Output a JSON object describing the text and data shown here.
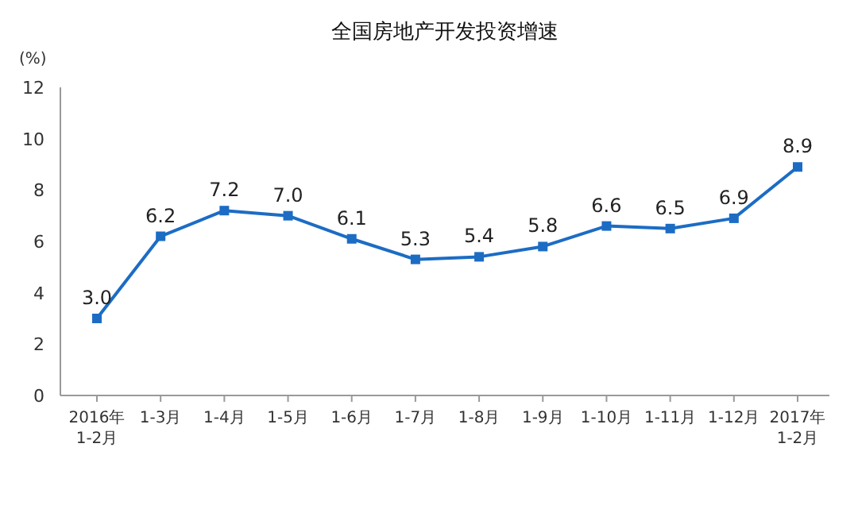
{
  "chart_data": {
    "type": "line",
    "title": "全国房地产开发投资增速",
    "ylabel": "(%)",
    "categories": [
      "2016年\n1-2月",
      "1-3月",
      "1-4月",
      "1-5月",
      "1-6月",
      "1-7月",
      "1-8月",
      "1-9月",
      "1-10月",
      "1-11月",
      "1-12月",
      "2017年\n1-2月"
    ],
    "series": [
      {
        "color": "#1c6cc4",
        "values": [
          3.0,
          6.2,
          7.2,
          7.0,
          6.1,
          5.3,
          5.4,
          5.8,
          6.6,
          6.5,
          6.9,
          8.9
        ],
        "value_labels": [
          "3.0",
          "6.2",
          "7.2",
          "7.0",
          "6.1",
          "5.3",
          "5.4",
          "5.8",
          "6.6",
          "6.5",
          "6.9",
          "8.9"
        ]
      }
    ],
    "ylim": [
      0,
      12
    ],
    "yticks": [
      0,
      2,
      4,
      6,
      8,
      10,
      12
    ],
    "marker": "square",
    "line_style": "solid"
  }
}
